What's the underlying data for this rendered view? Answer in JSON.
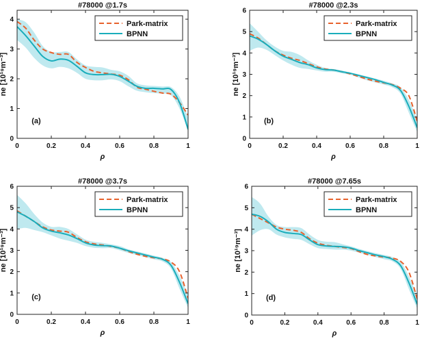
{
  "chart_data": [
    {
      "type": "line",
      "title": "#78000 @1.7s",
      "xlabel": "ρ",
      "ylabel": "ne [10¹⁹m⁻³]",
      "annotation": "(a)",
      "xlim": [
        0,
        1
      ],
      "ylim": [
        0,
        4.3
      ],
      "xticks": [
        "0",
        "0.2",
        "0.4",
        "0.6",
        "0.8",
        "1"
      ],
      "yticks": [
        "0",
        "1",
        "2",
        "3",
        "4"
      ],
      "legend": "top-right",
      "series": [
        {
          "name": "Park-matrix",
          "color": "#e8612c",
          "dash": true,
          "x": [
            0,
            0.05,
            0.1,
            0.15,
            0.2,
            0.25,
            0.3,
            0.35,
            0.4,
            0.45,
            0.5,
            0.55,
            0.6,
            0.65,
            0.7,
            0.75,
            0.8,
            0.85,
            0.9,
            0.95,
            1.0
          ],
          "y": [
            3.92,
            3.7,
            3.3,
            3.0,
            2.88,
            2.82,
            2.82,
            2.55,
            2.38,
            2.25,
            2.2,
            2.16,
            2.12,
            1.97,
            1.72,
            1.65,
            1.58,
            1.52,
            1.48,
            1.2,
            0.78
          ]
        },
        {
          "name": "BPNN",
          "color": "#19adbb",
          "x": [
            0,
            0.05,
            0.1,
            0.15,
            0.2,
            0.25,
            0.3,
            0.35,
            0.4,
            0.45,
            0.5,
            0.55,
            0.6,
            0.65,
            0.7,
            0.75,
            0.8,
            0.85,
            0.9,
            0.95,
            1.0
          ],
          "y": [
            3.75,
            3.45,
            3.1,
            2.75,
            2.6,
            2.66,
            2.62,
            2.42,
            2.2,
            2.14,
            2.14,
            2.15,
            2.08,
            1.92,
            1.75,
            1.68,
            1.68,
            1.66,
            1.64,
            1.2,
            0.3
          ]
        }
      ],
      "band": {
        "color": "#bfe9ef",
        "x": [
          0,
          0.05,
          0.1,
          0.15,
          0.2,
          0.25,
          0.3,
          0.35,
          0.4,
          0.45,
          0.5,
          0.55,
          0.6,
          0.65,
          0.7,
          0.75,
          0.8,
          0.85,
          0.9,
          0.95,
          1.0
        ],
        "upper": [
          4.0,
          3.9,
          3.55,
          3.1,
          2.9,
          2.9,
          2.9,
          2.65,
          2.45,
          2.4,
          2.38,
          2.3,
          2.25,
          2.1,
          1.85,
          1.78,
          1.76,
          1.74,
          1.72,
          1.4,
          0.7
        ],
        "lower": [
          3.3,
          3.05,
          2.7,
          2.45,
          2.35,
          2.4,
          2.35,
          2.2,
          2.0,
          1.95,
          1.95,
          1.98,
          1.92,
          1.75,
          1.6,
          1.55,
          1.52,
          1.5,
          1.45,
          1.0,
          0.25
        ]
      }
    },
    {
      "type": "line",
      "title": "#78000 @2.3s",
      "xlabel": "ρ",
      "ylabel": "ne [10¹⁹m⁻³]",
      "annotation": "(b)",
      "xlim": [
        0,
        1
      ],
      "ylim": [
        0,
        6
      ],
      "xticks": [
        "0",
        "0.2",
        "0.4",
        "0.6",
        "0.8",
        "1"
      ],
      "yticks": [
        "0",
        "1",
        "2",
        "3",
        "4",
        "5",
        "6"
      ],
      "legend": "top-right",
      "series": [
        {
          "name": "Park-matrix",
          "color": "#e8612c",
          "dash": true,
          "x": [
            0,
            0.05,
            0.1,
            0.15,
            0.2,
            0.25,
            0.3,
            0.35,
            0.4,
            0.45,
            0.5,
            0.55,
            0.6,
            0.65,
            0.7,
            0.75,
            0.8,
            0.85,
            0.9,
            0.95,
            1.0
          ],
          "y": [
            4.9,
            4.7,
            4.4,
            4.1,
            3.9,
            3.75,
            3.65,
            3.5,
            3.35,
            3.25,
            3.2,
            3.12,
            3.02,
            2.9,
            2.78,
            2.68,
            2.6,
            2.52,
            2.35,
            2.0,
            0.8
          ]
        },
        {
          "name": "BPNN",
          "color": "#19adbb",
          "x": [
            0,
            0.05,
            0.1,
            0.15,
            0.2,
            0.25,
            0.3,
            0.35,
            0.4,
            0.45,
            0.5,
            0.55,
            0.6,
            0.65,
            0.7,
            0.75,
            0.8,
            0.85,
            0.9,
            0.95,
            1.0
          ],
          "y": [
            4.8,
            4.65,
            4.4,
            4.1,
            3.85,
            3.7,
            3.55,
            3.45,
            3.3,
            3.22,
            3.2,
            3.12,
            3.05,
            2.95,
            2.85,
            2.75,
            2.62,
            2.5,
            2.25,
            1.5,
            0.5
          ]
        }
      ],
      "band": {
        "color": "#bfe9ef",
        "x": [
          0,
          0.05,
          0.1,
          0.15,
          0.2,
          0.25,
          0.3,
          0.35,
          0.4,
          0.45,
          0.5,
          0.55,
          0.6,
          0.65,
          0.7,
          0.75,
          0.8,
          0.85,
          0.9,
          0.95,
          1.0
        ],
        "upper": [
          5.4,
          5.0,
          4.6,
          4.3,
          4.1,
          4.05,
          3.9,
          3.65,
          3.45,
          3.3,
          3.25,
          3.18,
          3.08,
          3.0,
          2.9,
          2.8,
          2.7,
          2.58,
          2.4,
          1.8,
          0.9
        ],
        "lower": [
          4.1,
          4.25,
          4.15,
          3.9,
          3.65,
          3.45,
          3.3,
          3.25,
          3.18,
          3.12,
          3.12,
          3.05,
          2.98,
          2.85,
          2.72,
          2.62,
          2.52,
          2.4,
          2.1,
          1.2,
          0.3
        ]
      }
    },
    {
      "type": "line",
      "title": "#78000 @3.7s",
      "xlabel": "ρ",
      "ylabel": "ne [10¹⁹m⁻³]",
      "annotation": "(c)",
      "xlim": [
        0,
        1
      ],
      "ylim": [
        0,
        6
      ],
      "xticks": [
        "0",
        "0.2",
        "0.4",
        "0.6",
        "0.8",
        "1"
      ],
      "yticks": [
        "0",
        "1",
        "2",
        "3",
        "4",
        "5",
        "6"
      ],
      "legend": "top-right",
      "series": [
        {
          "name": "Park-matrix",
          "color": "#e8612c",
          "dash": true,
          "x": [
            0,
            0.05,
            0.1,
            0.15,
            0.2,
            0.25,
            0.3,
            0.35,
            0.4,
            0.45,
            0.5,
            0.55,
            0.6,
            0.65,
            0.7,
            0.75,
            0.8,
            0.85,
            0.9,
            0.95,
            1.0
          ],
          "y": [
            4.85,
            4.6,
            4.35,
            4.1,
            3.95,
            3.9,
            3.85,
            3.6,
            3.4,
            3.3,
            3.25,
            3.18,
            3.1,
            2.95,
            2.82,
            2.72,
            2.65,
            2.6,
            2.45,
            2.0,
            0.75
          ]
        },
        {
          "name": "BPNN",
          "color": "#19adbb",
          "x": [
            0,
            0.05,
            0.1,
            0.15,
            0.2,
            0.25,
            0.3,
            0.35,
            0.4,
            0.45,
            0.5,
            0.55,
            0.6,
            0.65,
            0.7,
            0.75,
            0.8,
            0.85,
            0.9,
            0.95,
            1.0
          ],
          "y": [
            4.8,
            4.6,
            4.35,
            4.05,
            3.9,
            3.82,
            3.72,
            3.55,
            3.35,
            3.25,
            3.22,
            3.2,
            3.1,
            2.98,
            2.88,
            2.78,
            2.68,
            2.58,
            2.3,
            1.5,
            0.5
          ]
        }
      ],
      "band": {
        "color": "#bfe9ef",
        "x": [
          0,
          0.05,
          0.1,
          0.15,
          0.2,
          0.25,
          0.3,
          0.35,
          0.4,
          0.45,
          0.5,
          0.55,
          0.6,
          0.65,
          0.7,
          0.75,
          0.8,
          0.85,
          0.9,
          0.95,
          1.0
        ],
        "upper": [
          5.6,
          5.2,
          4.7,
          4.3,
          4.1,
          4.1,
          4.0,
          3.75,
          3.5,
          3.4,
          3.35,
          3.28,
          3.2,
          3.05,
          2.95,
          2.85,
          2.75,
          2.65,
          2.45,
          1.8,
          0.9
        ],
        "lower": [
          4.0,
          4.05,
          3.95,
          3.85,
          3.7,
          3.55,
          3.45,
          3.35,
          3.2,
          3.12,
          3.1,
          3.1,
          3.0,
          2.88,
          2.78,
          2.68,
          2.58,
          2.48,
          2.15,
          1.2,
          0.3
        ]
      }
    },
    {
      "type": "line",
      "title": "#78000 @7.65s",
      "xlabel": "ρ",
      "ylabel": "ne [10¹⁹m⁻³]",
      "annotation": "(d)",
      "xlim": [
        0,
        1
      ],
      "ylim": [
        0,
        6
      ],
      "xticks": [
        "0",
        "0.2",
        "0.4",
        "0.6",
        "0.8",
        "1"
      ],
      "yticks": [
        "0",
        "1",
        "2",
        "3",
        "4",
        "5",
        "6"
      ],
      "legend": "top-right",
      "series": [
        {
          "name": "Park-matrix",
          "color": "#e8612c",
          "dash": true,
          "x": [
            0,
            0.05,
            0.1,
            0.15,
            0.2,
            0.25,
            0.3,
            0.35,
            0.4,
            0.45,
            0.5,
            0.55,
            0.6,
            0.65,
            0.7,
            0.75,
            0.8,
            0.85,
            0.9,
            0.95,
            1.0
          ],
          "y": [
            4.7,
            4.5,
            4.3,
            4.1,
            4.0,
            3.95,
            3.85,
            3.55,
            3.35,
            3.25,
            3.2,
            3.15,
            3.1,
            2.95,
            2.82,
            2.75,
            2.7,
            2.65,
            2.5,
            2.0,
            0.75
          ]
        },
        {
          "name": "BPNN",
          "color": "#19adbb",
          "x": [
            0,
            0.05,
            0.1,
            0.15,
            0.2,
            0.25,
            0.3,
            0.35,
            0.4,
            0.45,
            0.5,
            0.55,
            0.6,
            0.65,
            0.7,
            0.75,
            0.8,
            0.85,
            0.9,
            0.95,
            1.0
          ],
          "y": [
            4.7,
            4.6,
            4.35,
            4.0,
            3.85,
            3.8,
            3.75,
            3.5,
            3.28,
            3.22,
            3.2,
            3.18,
            3.12,
            3.0,
            2.9,
            2.8,
            2.72,
            2.6,
            2.3,
            1.5,
            0.5
          ]
        }
      ],
      "band": {
        "color": "#bfe9ef",
        "x": [
          0,
          0.05,
          0.1,
          0.15,
          0.2,
          0.25,
          0.3,
          0.35,
          0.4,
          0.45,
          0.5,
          0.55,
          0.6,
          0.65,
          0.7,
          0.75,
          0.8,
          0.85,
          0.9,
          0.95,
          1.0
        ],
        "upper": [
          5.5,
          5.2,
          4.6,
          4.2,
          4.1,
          4.1,
          4.05,
          3.75,
          3.5,
          3.42,
          3.4,
          3.3,
          3.2,
          3.08,
          2.98,
          2.88,
          2.8,
          2.7,
          2.48,
          1.8,
          0.9
        ],
        "lower": [
          3.7,
          3.95,
          4.0,
          3.75,
          3.62,
          3.55,
          3.5,
          3.3,
          3.12,
          3.08,
          3.05,
          3.05,
          3.0,
          2.9,
          2.8,
          2.7,
          2.6,
          2.5,
          2.15,
          1.2,
          0.3
        ]
      }
    }
  ]
}
